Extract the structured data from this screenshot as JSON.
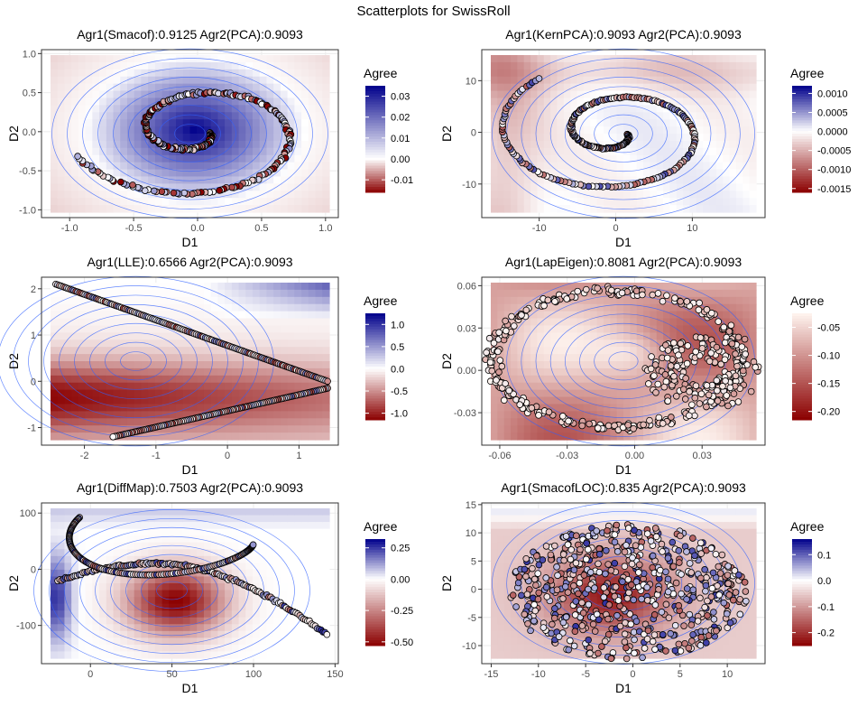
{
  "figure_title": "Scatterplots for SwissRoll",
  "chart_data": [
    {
      "type": "scatter",
      "title": "Agr1(Smacof):0.9125 Agr2(PCA):0.9093",
      "xlabel": "D1",
      "ylabel": "D2",
      "xlim": [
        -1.22,
        1.1
      ],
      "ylim": [
        -1.1,
        1.05
      ],
      "xticks": [
        -1.0,
        -0.5,
        0.0,
        0.5,
        1.0
      ],
      "xtick_labels": [
        "-1.0",
        "-0.5",
        "0.0",
        "0.5",
        "1.0"
      ],
      "yticks": [
        -1.0,
        -0.5,
        0.0,
        0.5,
        1.0
      ],
      "ytick_labels": [
        "-1.0",
        "-0.5",
        "0.0",
        "0.5",
        "1.0"
      ],
      "legend": {
        "title": "Agree",
        "min": -0.016,
        "max": 0.035,
        "mid": 0,
        "breaks": [
          0.03,
          0.02,
          0.01,
          0.0,
          -0.01
        ],
        "labels": [
          "0.03",
          "0.02",
          "0.01",
          "0.00",
          "-0.01"
        ]
      },
      "spiral": {
        "scale_x": 1.0,
        "scale_y": 1.0,
        "shift_x": 0.0,
        "shift_y": 0.0,
        "turns": 1.4,
        "points": 260,
        "scatter": 0.02
      },
      "color_field": "bowl_center",
      "colors": {
        "low": "#8b0000",
        "mid": "#ffffff",
        "high": "#00008b",
        "contour": "#3060ff"
      }
    },
    {
      "type": "scatter",
      "title": "Agr1(KernPCA):0.9093 Agr2(PCA):0.9093",
      "xlabel": "D1",
      "ylabel": "D2",
      "xlim": [
        -17.5,
        19.5
      ],
      "ylim": [
        -16.5,
        16.0
      ],
      "xticks": [
        -10,
        0,
        10
      ],
      "xtick_labels": [
        "-10",
        "0",
        "10"
      ],
      "yticks": [
        -10,
        0,
        10
      ],
      "ytick_labels": [
        "-10",
        "0",
        "10"
      ],
      "legend": {
        "title": "Agree",
        "min": -0.0016,
        "max": 0.0012,
        "mid": 0,
        "breaks": [
          0.001,
          0.0005,
          0.0,
          -0.0005,
          -0.001,
          -0.0015
        ],
        "labels": [
          "0.0010",
          "0.0005",
          "0.0000",
          "-0.0005",
          "-0.0010",
          "-0.0015"
        ]
      },
      "spiral": {
        "scale_x": 16.0,
        "scale_y": 15.0,
        "shift_x": 0.0,
        "shift_y": 0.0,
        "turns": 1.6,
        "points": 250,
        "scatter": 0.01
      },
      "color_field": "mixed_light",
      "colors": {
        "low": "#8b0000",
        "mid": "#ffffff",
        "high": "#00008b",
        "contour": "#3060ff"
      }
    },
    {
      "type": "scatter",
      "title": "Agr1(LLE):0.6566 Agr2(PCA):0.9093",
      "xlabel": "D1",
      "ylabel": "D2",
      "xlim": [
        -2.6,
        1.55
      ],
      "ylim": [
        -1.38,
        2.25
      ],
      "xticks": [
        -2,
        -1,
        0,
        1
      ],
      "xtick_labels": [
        "-2",
        "-1",
        "0",
        "1"
      ],
      "yticks": [
        -1,
        0,
        1,
        2
      ],
      "ytick_labels": [
        "-1",
        "0",
        "1",
        "2"
      ],
      "legend": {
        "title": "Agree",
        "min": -1.15,
        "max": 1.25,
        "mid": 0,
        "breaks": [
          1.0,
          0.5,
          0.0,
          -0.5,
          -1.0
        ],
        "labels": [
          "1.0",
          "0.5",
          "0.0",
          "-0.5",
          "-1.0"
        ]
      },
      "curve": "arrowhead",
      "color_field": "lle",
      "colors": {
        "low": "#8b0000",
        "mid": "#ffffff",
        "high": "#00008b",
        "contour": "#3060ff"
      }
    },
    {
      "type": "scatter",
      "title": "Agr1(LapEigen):0.8081 Agr2(PCA):0.9093",
      "xlabel": "D1",
      "ylabel": "D2",
      "xlim": [
        -0.068,
        0.058
      ],
      "ylim": [
        -0.053,
        0.066
      ],
      "xticks": [
        -0.06,
        -0.03,
        0.0,
        0.03
      ],
      "xtick_labels": [
        "-0.06",
        "-0.03",
        "0.00",
        "0.03"
      ],
      "yticks": [
        -0.03,
        0.0,
        0.03,
        0.06
      ],
      "ytick_labels": [
        "-0.03",
        "0.00",
        "0.03",
        "0.06"
      ],
      "legend": {
        "title": "Agree",
        "min": -0.215,
        "max": -0.025,
        "mid": -0.025,
        "breaks": [
          -0.05,
          -0.1,
          -0.15,
          -0.2
        ],
        "labels": [
          "-0.05",
          "-0.10",
          "-0.15",
          "-0.20"
        ]
      },
      "curve": "lapeigen",
      "color_field": "uniform_red",
      "colors": {
        "low": "#8b0000",
        "mid": "#fff5f0",
        "high": "#00008b",
        "contour": "#3060ff"
      }
    },
    {
      "type": "scatter",
      "title": "Agr1(DiffMap):0.7503 Agr2(PCA):0.9093",
      "xlabel": "D1",
      "ylabel": "D2",
      "xlim": [
        -30,
        152
      ],
      "ylim": [
        -168,
        118
      ],
      "xticks": [
        0,
        50,
        100,
        150
      ],
      "xtick_labels": [
        "0",
        "50",
        "100",
        "150"
      ],
      "yticks": [
        100,
        0,
        -100
      ],
      "ytick_labels": [
        "100",
        "0",
        "-100"
      ],
      "legend": {
        "title": "Agree",
        "min": -0.53,
        "max": 0.32,
        "mid": 0,
        "breaks": [
          0.25,
          0.0,
          -0.25,
          -0.5
        ],
        "labels": [
          "0.25",
          "0.00",
          "-0.25",
          "-0.50"
        ]
      },
      "curve": "diffmap",
      "color_field": "diffmap",
      "colors": {
        "low": "#8b0000",
        "mid": "#ffffff",
        "high": "#00008b",
        "contour": "#3060ff"
      }
    },
    {
      "type": "scatter",
      "title": "Agr1(SmacofLOC):0.835 Agr2(PCA):0.9093",
      "xlabel": "D1",
      "ylabel": "D2",
      "xlim": [
        -16,
        14
      ],
      "ylim": [
        -13.2,
        15.3
      ],
      "xticks": [
        -15,
        -10,
        -5,
        0,
        5,
        10
      ],
      "xtick_labels": [
        "-15",
        "-10",
        "-5",
        "0",
        "5",
        "10"
      ],
      "yticks": [
        15,
        10,
        5,
        0,
        -5,
        -10
      ],
      "ytick_labels": [
        "15",
        "10",
        "5",
        "0",
        "-5",
        "-10"
      ],
      "legend": {
        "title": "Agree",
        "min": -0.25,
        "max": 0.16,
        "mid": 0,
        "breaks": [
          0.1,
          0.0,
          -0.1,
          -0.2
        ],
        "labels": [
          "0.1",
          "0.0",
          "-0.1",
          "-0.2"
        ]
      },
      "curve": "cloud",
      "color_field": "smacofloc",
      "colors": {
        "low": "#8b0000",
        "mid": "#ffffff",
        "high": "#00008b",
        "contour": "#3060ff"
      }
    }
  ]
}
